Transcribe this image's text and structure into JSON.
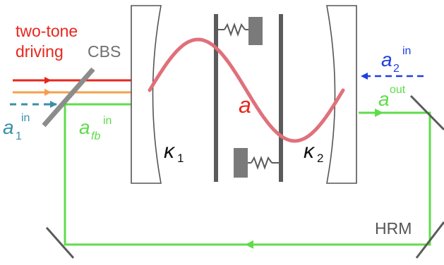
{
  "labels": {
    "two_tone_line1": "two-tone",
    "two_tone_line2": "driving",
    "cbs": "CBS",
    "a1_in_base": "a",
    "a1_in_sub": "1",
    "a1_in_sup": "in",
    "afb_in_base": "a",
    "afb_in_sub": "fb",
    "afb_in_sup": "in",
    "kappa1_base": "κ",
    "kappa1_sub": "1",
    "kappa2_base": "κ",
    "kappa2_sub": "2",
    "mode": "a",
    "a2_in_base": "a",
    "a2_in_sub": "2",
    "a2_in_sup": "in",
    "aout_base": "a",
    "aout_sup": "out",
    "hrm": "HRM"
  },
  "colors": {
    "drive_red": "#e8261d",
    "drive_orange": "#f5a04a",
    "probe_teal": "#3a8fa8",
    "feedback_green": "#5fdc4a",
    "input2_blue": "#1f3fe0",
    "mode_pink": "#e0707a",
    "mirror_gray": "#5b5b5b",
    "text_gray": "#666666"
  },
  "icons": [
    "beam-splitter",
    "mirror",
    "spring",
    "membrane"
  ]
}
